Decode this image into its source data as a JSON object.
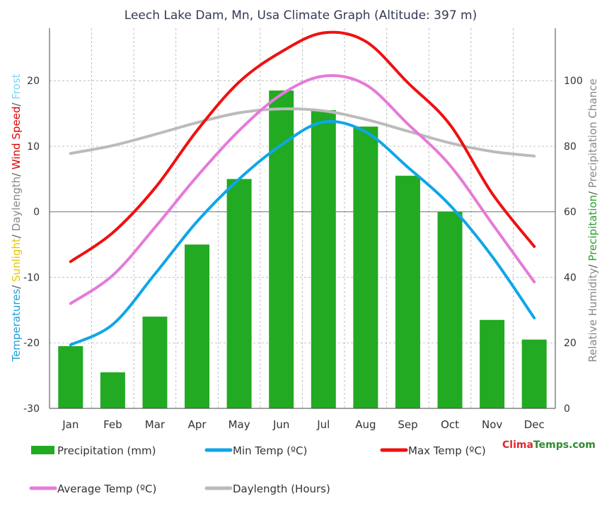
{
  "chart_data": {
    "type": "bar+line",
    "title": "Leech Lake Dam, Mn, Usa Climate Graph (Altitude: 397 m)",
    "categories": [
      "Jan",
      "Feb",
      "Mar",
      "Apr",
      "May",
      "Jun",
      "Jul",
      "Aug",
      "Sep",
      "Oct",
      "Nov",
      "Dec"
    ],
    "left_axis": {
      "ylim": [
        -30,
        28
      ],
      "ticks": [
        -30,
        -20,
        -10,
        0,
        10,
        20
      ],
      "title_parts": [
        {
          "text": "Temperatures",
          "color": "#1f9fd8"
        },
        {
          "text": "/ ",
          "color": "#555555"
        },
        {
          "text": "Sunlight",
          "color": "#e6c700"
        },
        {
          "text": "/ ",
          "color": "#555555"
        },
        {
          "text": "Daylength",
          "color": "#888888"
        },
        {
          "text": "/ ",
          "color": "#555555"
        },
        {
          "text": "Wind Speed",
          "color": "#e00000"
        },
        {
          "text": "/ ",
          "color": "#555555"
        },
        {
          "text": "Frost",
          "color": "#7fd4f0"
        }
      ]
    },
    "right_axis": {
      "ylim": [
        0,
        116
      ],
      "ticks": [
        0,
        20,
        40,
        60,
        80,
        100
      ],
      "title_parts": [
        {
          "text": "Relative Humidity",
          "color": "#888888"
        },
        {
          "text": "/ ",
          "color": "#555555"
        },
        {
          "text": "Precipitation",
          "color": "#2e9e2e"
        },
        {
          "text": "/ ",
          "color": "#555555"
        },
        {
          "text": "Precipitation Chance",
          "color": "#888888"
        }
      ]
    },
    "series": [
      {
        "name": "Precipitation (mm)",
        "type": "bar",
        "axis": "right",
        "color": "#22aa22",
        "values": [
          19,
          11,
          28,
          50,
          70,
          97,
          91,
          86,
          71,
          60,
          27,
          21
        ]
      },
      {
        "name": "Min Temp (ºC)",
        "type": "line",
        "axis": "left",
        "color": "#0fa6e8",
        "values": [
          -20.3,
          -17.2,
          -9.5,
          -1.5,
          5.0,
          10.2,
          13.7,
          12.2,
          6.8,
          1.0,
          -6.8,
          -16.2
        ]
      },
      {
        "name": "Max Temp (ºC)",
        "type": "line",
        "axis": "left",
        "color": "#ee1111",
        "values": [
          -7.6,
          -3.2,
          3.6,
          12.4,
          19.8,
          24.4,
          27.3,
          26.0,
          19.7,
          13.3,
          2.8,
          -5.3
        ]
      },
      {
        "name": "Average Temp (ºC)",
        "type": "line",
        "axis": "left",
        "color": "#e57ad8",
        "values": [
          -14.0,
          -9.7,
          -2.4,
          5.4,
          12.4,
          17.9,
          20.7,
          19.4,
          13.4,
          7.1,
          -1.8,
          -10.7
        ]
      },
      {
        "name": "Daylength (Hours)",
        "type": "line",
        "axis": "left",
        "color": "#bbbbbb",
        "values": [
          8.9,
          10.1,
          11.8,
          13.6,
          15.1,
          15.7,
          15.4,
          14.1,
          12.3,
          10.5,
          9.2,
          8.5
        ]
      }
    ],
    "grid": true
  },
  "brand": {
    "part1": "Clima",
    "part2": "Temps.com"
  }
}
